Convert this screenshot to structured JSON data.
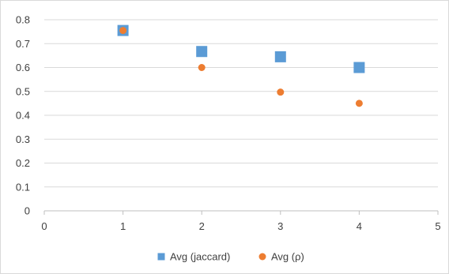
{
  "chart_data": {
    "type": "scatter",
    "title": "",
    "xlabel": "",
    "ylabel": "",
    "xlim": [
      0,
      5
    ],
    "ylim": [
      0,
      0.8
    ],
    "x_ticks": [
      "0",
      "1",
      "2",
      "3",
      "4",
      "5"
    ],
    "y_ticks": [
      "0",
      "0.1",
      "0.2",
      "0.3",
      "0.4",
      "0.5",
      "0.6",
      "0.7",
      "0.8"
    ],
    "grid": "horizontal",
    "legend_position": "bottom",
    "series": [
      {
        "name": "Avg (jaccard)",
        "marker": "square",
        "color": "#5b9bd5",
        "points": [
          {
            "x": 1,
            "y": 0.755
          },
          {
            "x": 2,
            "y": 0.667
          },
          {
            "x": 3,
            "y": 0.645
          },
          {
            "x": 4,
            "y": 0.6
          }
        ]
      },
      {
        "name": "Avg (ρ)",
        "marker": "circle",
        "color": "#ed7d31",
        "points": [
          {
            "x": 1,
            "y": 0.755
          },
          {
            "x": 2,
            "y": 0.6
          },
          {
            "x": 3,
            "y": 0.497
          },
          {
            "x": 4,
            "y": 0.45
          }
        ]
      }
    ]
  }
}
